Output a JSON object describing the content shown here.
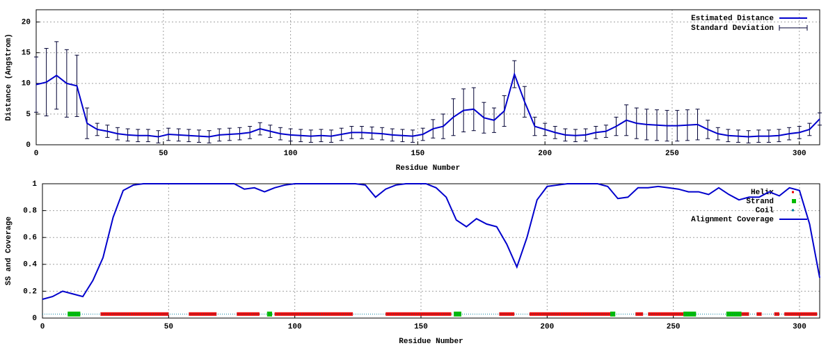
{
  "chart_data": [
    {
      "type": "line",
      "xlabel": "Residue Number",
      "ylabel": "Distance (Angstrom)",
      "xlim": [
        0,
        308
      ],
      "ylim": [
        0,
        22
      ],
      "xticks": [
        0,
        50,
        100,
        150,
        200,
        250,
        300
      ],
      "yticks": [
        0,
        5,
        10,
        15,
        20
      ],
      "grid": true,
      "legend": "upper right",
      "x": [
        0,
        4,
        8,
        12,
        16,
        20,
        24,
        28,
        32,
        36,
        40,
        44,
        48,
        52,
        56,
        60,
        64,
        68,
        72,
        76,
        80,
        84,
        88,
        92,
        96,
        100,
        104,
        108,
        112,
        116,
        120,
        124,
        128,
        132,
        136,
        140,
        144,
        148,
        152,
        156,
        160,
        164,
        168,
        172,
        176,
        180,
        184,
        188,
        192,
        196,
        200,
        204,
        208,
        212,
        216,
        220,
        224,
        228,
        232,
        236,
        240,
        244,
        248,
        252,
        256,
        260,
        264,
        268,
        272,
        276,
        280,
        284,
        288,
        292,
        296,
        300,
        304,
        308
      ],
      "series": [
        {
          "name": "Estimated Distance",
          "color": "#0000cc",
          "values": [
            9.8,
            10.2,
            11.3,
            10.0,
            9.6,
            3.5,
            2.5,
            2.2,
            1.8,
            1.6,
            1.5,
            1.5,
            1.3,
            1.7,
            1.6,
            1.5,
            1.4,
            1.3,
            1.6,
            1.7,
            1.8,
            2.0,
            2.6,
            2.2,
            1.8,
            1.6,
            1.5,
            1.4,
            1.5,
            1.4,
            1.7,
            2.0,
            2.0,
            1.9,
            1.8,
            1.6,
            1.5,
            1.4,
            1.7,
            2.6,
            3.0,
            4.5,
            5.6,
            5.8,
            4.4,
            4.0,
            5.5,
            11.5,
            7.0,
            3.0,
            2.5,
            2.0,
            1.6,
            1.5,
            1.6,
            2.0,
            2.2,
            3.0,
            4.0,
            3.5,
            3.3,
            3.2,
            3.1,
            3.1,
            3.2,
            3.3,
            2.5,
            1.8,
            1.5,
            1.4,
            1.3,
            1.4,
            1.4,
            1.5,
            1.8,
            2.0,
            2.5,
            4.2
          ]
        },
        {
          "name": "Standard Deviation",
          "color": "#000033",
          "values": [
            4.5,
            5.5,
            5.5,
            5.5,
            5.0,
            2.5,
            1,
            1,
            1,
            1,
            1,
            1,
            1,
            1,
            1,
            1,
            1,
            1,
            1,
            1,
            1,
            1,
            1,
            1,
            1,
            1,
            1,
            1,
            1,
            1,
            1,
            1,
            1,
            1,
            1,
            1,
            1,
            1,
            1,
            1.5,
            2,
            3,
            3.5,
            3.5,
            2.5,
            2,
            2.5,
            2.2,
            2.5,
            1.5,
            1,
            1,
            1,
            1,
            1,
            1,
            1,
            1.5,
            2.5,
            2.5,
            2.5,
            2.5,
            2.5,
            2.5,
            2.5,
            2.5,
            1.5,
            1,
            1,
            1,
            1,
            1,
            1,
            1,
            1,
            1,
            1,
            1
          ]
        }
      ]
    },
    {
      "type": "line",
      "xlabel": "Residue Number",
      "ylabel": "SS and Coverage",
      "xlim": [
        0,
        308
      ],
      "ylim": [
        0,
        1
      ],
      "xticks": [
        0,
        50,
        100,
        150,
        200,
        250,
        300
      ],
      "yticks": [
        0,
        0.2,
        0.4,
        0.6,
        0.8,
        1
      ],
      "grid": true,
      "legend": "upper right",
      "x": [
        0,
        4,
        8,
        12,
        16,
        20,
        24,
        28,
        32,
        36,
        40,
        44,
        48,
        52,
        56,
        60,
        64,
        68,
        72,
        76,
        80,
        84,
        88,
        92,
        96,
        100,
        104,
        108,
        112,
        116,
        120,
        124,
        128,
        132,
        136,
        140,
        144,
        148,
        152,
        156,
        160,
        164,
        168,
        172,
        176,
        180,
        184,
        188,
        192,
        196,
        200,
        204,
        208,
        212,
        216,
        220,
        224,
        228,
        232,
        236,
        240,
        244,
        248,
        252,
        256,
        260,
        264,
        268,
        272,
        276,
        280,
        284,
        288,
        292,
        296,
        300,
        304,
        308
      ],
      "series": [
        {
          "name": "Helix",
          "color": "#ee0000",
          "y": 0.03,
          "ranges": [
            [
              23,
              50
            ],
            [
              58,
              69
            ],
            [
              77,
              86
            ],
            [
              92,
              123
            ],
            [
              136,
              162
            ],
            [
              181,
              187
            ],
            [
              193,
              225
            ],
            [
              235,
              238
            ],
            [
              240,
              254
            ],
            [
              277,
              280
            ],
            [
              283,
              285
            ],
            [
              290,
              292
            ],
            [
              294,
              307
            ]
          ]
        },
        {
          "name": "Strand",
          "color": "#00bb00",
          "y": 0.03,
          "ranges": [
            [
              10,
              15
            ],
            [
              89,
              91
            ],
            [
              163,
              166
            ],
            [
              225,
              227
            ],
            [
              254,
              259
            ],
            [
              271,
              277
            ]
          ]
        },
        {
          "name": "Coil",
          "color": "#0080a0",
          "y": 0.03,
          "ranges": [
            [
              0,
              308
            ]
          ]
        },
        {
          "name": "Alignment Coverage",
          "color": "#0000cc",
          "values": [
            0.14,
            0.16,
            0.2,
            0.18,
            0.16,
            0.28,
            0.45,
            0.75,
            0.95,
            0.99,
            1,
            1,
            1,
            1,
            1,
            1,
            1,
            1,
            1,
            1,
            0.96,
            0.97,
            0.94,
            0.97,
            0.99,
            1,
            1,
            1,
            1,
            1,
            1,
            1,
            0.99,
            0.9,
            0.96,
            0.99,
            1,
            1,
            1,
            0.97,
            0.9,
            0.73,
            0.68,
            0.74,
            0.7,
            0.68,
            0.55,
            0.38,
            0.6,
            0.88,
            0.98,
            0.99,
            1,
            1,
            1,
            1,
            0.98,
            0.89,
            0.9,
            0.97,
            0.97,
            0.98,
            0.97,
            0.96,
            0.94,
            0.94,
            0.92,
            0.97,
            0.92,
            0.88,
            0.9,
            0.9,
            0.94,
            0.91,
            0.97,
            0.95,
            0.7,
            0.3
          ]
        }
      ]
    }
  ]
}
